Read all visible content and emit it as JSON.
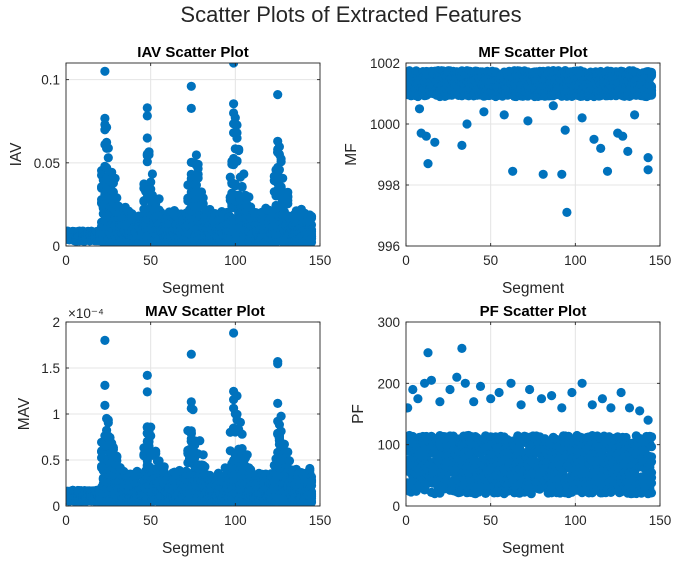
{
  "figure": {
    "title": "Scatter Plots of Extracted Features",
    "marker_color": "#0072BD"
  },
  "chart_data": [
    {
      "type": "scatter",
      "title": "IAV Scatter Plot",
      "xlabel": "Segment",
      "ylabel": "IAV",
      "xlim": [
        0,
        150
      ],
      "ylim": [
        0,
        0.11
      ],
      "xticks": [
        0,
        50,
        100,
        150
      ],
      "yticks": [
        0,
        0.05,
        0.1
      ],
      "ytick_labels": [
        "0",
        "0.05",
        "0.1"
      ],
      "grid": true,
      "points_per_segment": 12,
      "baseline": [
        0.003,
        0.009
      ],
      "peaks": [
        {
          "x": 23,
          "y": 0.105
        },
        {
          "x": 48,
          "y": 0.083
        },
        {
          "x": 74,
          "y": 0.096
        },
        {
          "x": 99,
          "y": 0.11
        },
        {
          "x": 125,
          "y": 0.091
        }
      ]
    },
    {
      "type": "scatter",
      "title": "MF Scatter Plot",
      "xlabel": "Segment",
      "ylabel": "MF",
      "xlim": [
        0,
        150
      ],
      "ylim": [
        996,
        1002
      ],
      "xticks": [
        0,
        50,
        100,
        150
      ],
      "yticks": [
        996,
        998,
        1000,
        1002
      ],
      "ytick_labels": [
        "996",
        "998",
        "1000",
        "1002"
      ],
      "grid": true,
      "band": [
        1000.9,
        1001.75
      ],
      "outliers": [
        {
          "x": 8,
          "y": 1000.5
        },
        {
          "x": 9,
          "y": 999.7
        },
        {
          "x": 12,
          "y": 999.6
        },
        {
          "x": 13,
          "y": 998.7
        },
        {
          "x": 17,
          "y": 999.4
        },
        {
          "x": 33,
          "y": 999.3
        },
        {
          "x": 36,
          "y": 1000.0
        },
        {
          "x": 63,
          "y": 998.45
        },
        {
          "x": 72,
          "y": 1000.1
        },
        {
          "x": 81,
          "y": 998.35
        },
        {
          "x": 92,
          "y": 998.35
        },
        {
          "x": 94,
          "y": 999.8
        },
        {
          "x": 95,
          "y": 997.1
        },
        {
          "x": 111,
          "y": 999.5
        },
        {
          "x": 115,
          "y": 999.2
        },
        {
          "x": 119,
          "y": 998.45
        },
        {
          "x": 125,
          "y": 999.7
        },
        {
          "x": 128,
          "y": 999.6
        },
        {
          "x": 131,
          "y": 999.1
        },
        {
          "x": 143,
          "y": 998.9
        },
        {
          "x": 143,
          "y": 998.5
        },
        {
          "x": 46,
          "y": 1000.4
        },
        {
          "x": 58,
          "y": 1000.3
        },
        {
          "x": 87,
          "y": 1000.6
        },
        {
          "x": 104,
          "y": 1000.2
        },
        {
          "x": 135,
          "y": 1000.3
        }
      ]
    },
    {
      "type": "scatter",
      "title": "MAV Scatter Plot",
      "xlabel": "Segment",
      "ylabel": "MAV",
      "xlim": [
        0,
        150
      ],
      "ylim": [
        0,
        2
      ],
      "xticks": [
        0,
        50,
        100,
        150
      ],
      "yticks": [
        0,
        0.5,
        1,
        1.5,
        2
      ],
      "ytick_labels": [
        "0",
        "0.5",
        "1",
        "1.5",
        "2"
      ],
      "exponent_label": "×10⁻⁴",
      "grid": true,
      "points_per_segment": 12,
      "baseline": [
        0.05,
        0.17
      ],
      "peaks": [
        {
          "x": 23,
          "y": 1.8
        },
        {
          "x": 48,
          "y": 1.42
        },
        {
          "x": 74,
          "y": 1.65
        },
        {
          "x": 99,
          "y": 1.88
        },
        {
          "x": 125,
          "y": 1.57
        }
      ]
    },
    {
      "type": "scatter",
      "title": "PF Scatter Plot",
      "xlabel": "Segment",
      "ylabel": "PF",
      "xlim": [
        0,
        150
      ],
      "ylim": [
        0,
        300
      ],
      "xticks": [
        0,
        50,
        100,
        150
      ],
      "yticks": [
        0,
        100,
        200,
        300
      ],
      "ytick_labels": [
        "0",
        "100",
        "200",
        "300"
      ],
      "grid": true,
      "band": [
        20,
        115
      ],
      "upper": [
        {
          "x": 1,
          "y": 160
        },
        {
          "x": 4,
          "y": 190
        },
        {
          "x": 7,
          "y": 175
        },
        {
          "x": 11,
          "y": 200
        },
        {
          "x": 13,
          "y": 250
        },
        {
          "x": 15,
          "y": 205
        },
        {
          "x": 20,
          "y": 170
        },
        {
          "x": 26,
          "y": 190
        },
        {
          "x": 30,
          "y": 210
        },
        {
          "x": 33,
          "y": 257
        },
        {
          "x": 35,
          "y": 200
        },
        {
          "x": 40,
          "y": 170
        },
        {
          "x": 44,
          "y": 195
        },
        {
          "x": 50,
          "y": 175
        },
        {
          "x": 55,
          "y": 185
        },
        {
          "x": 62,
          "y": 200
        },
        {
          "x": 68,
          "y": 165
        },
        {
          "x": 73,
          "y": 190
        },
        {
          "x": 80,
          "y": 175
        },
        {
          "x": 86,
          "y": 180
        },
        {
          "x": 92,
          "y": 160
        },
        {
          "x": 98,
          "y": 185
        },
        {
          "x": 104,
          "y": 200
        },
        {
          "x": 110,
          "y": 165
        },
        {
          "x": 116,
          "y": 175
        },
        {
          "x": 121,
          "y": 160
        },
        {
          "x": 127,
          "y": 185
        },
        {
          "x": 132,
          "y": 160
        },
        {
          "x": 138,
          "y": 155
        },
        {
          "x": 143,
          "y": 140
        }
      ]
    }
  ]
}
